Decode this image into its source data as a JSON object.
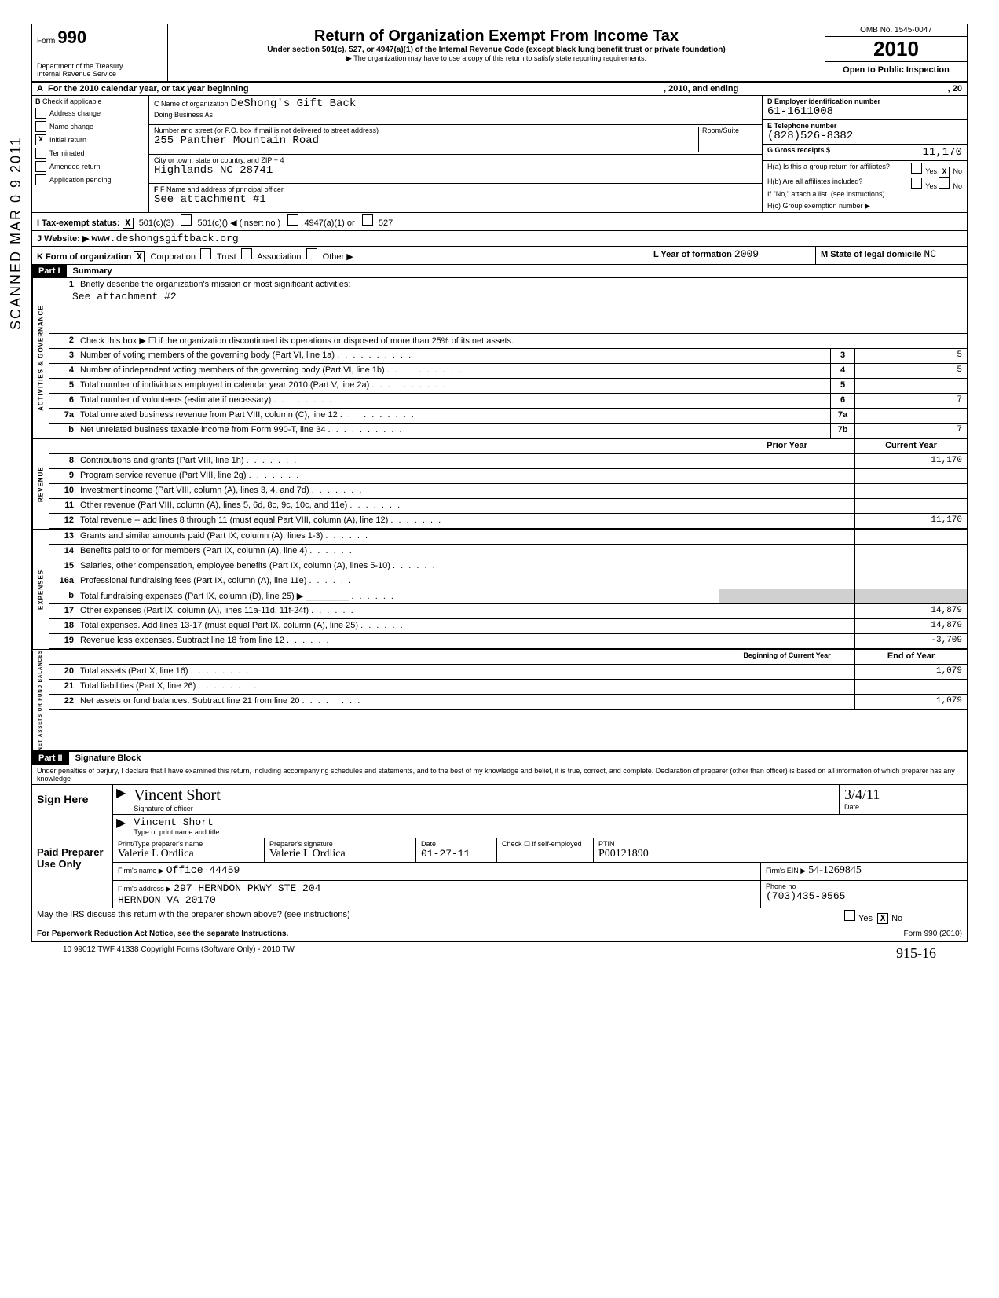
{
  "header": {
    "form_label": "Form",
    "form_number": "990",
    "dept1": "Department of the Treasury",
    "dept2": "Internal Revenue Service",
    "title": "Return of Organization Exempt From Income Tax",
    "subtitle": "Under section 501(c), 527, or 4947(a)(1) of the Internal Revenue Code (except black lung benefit trust or private foundation)",
    "note": "▶ The organization may have to use a copy of this return to satisfy state reporting requirements.",
    "omb": "OMB No. 1545-0047",
    "year": "2010",
    "open": "Open to Public Inspection"
  },
  "row_a": {
    "label": "A",
    "text": "For the 2010 calendar year, or tax year beginning",
    "mid": ", 2010, and ending",
    "end": ", 20"
  },
  "col_b": {
    "header": "B",
    "sub": "Check if applicable",
    "items": [
      "Address change",
      "Name change",
      "Initial return",
      "Terminated",
      "Amended return",
      "Application pending"
    ],
    "checked_index": 2
  },
  "col_c": {
    "name_label": "C Name of organization",
    "name_value": "DeShong's Gift Back",
    "dba_label": "Doing Business As",
    "dba_value": "",
    "addr_label": "Number and street (or P.O. box if mail is not delivered to street address)",
    "addr_value": "255 Panther Mountain Road",
    "room_label": "Room/Suite",
    "city_label": "City or town, state or country, and ZIP + 4",
    "city_value": "Highlands NC 28741",
    "officer_label": "F   Name and address of principal officer.",
    "officer_value": "See attachment #1"
  },
  "col_d": {
    "ein_label": "D Employer identification number",
    "ein_value": "61-1611008",
    "phone_label": "E Telephone number",
    "phone_value": "(828)526-8382",
    "gross_label": "G Gross receipts $",
    "gross_value": "11,170"
  },
  "h_section": {
    "ha": "H(a) Is this a group return for affiliates?",
    "hb": "H(b) Are all affiliates included?",
    "hb_note": "If \"No,\" attach a list. (see instructions)",
    "hc": "H(c) Group exemption number ▶",
    "yes": "Yes",
    "no": "No"
  },
  "status_row": {
    "i_label": "I  Tax-exempt status:",
    "c3": "501(c)(3)",
    "c": "501(c)(",
    "insert": ") ◀ (insert no )",
    "a1": "4947(a)(1) or",
    "s527": "527"
  },
  "website_row": {
    "label": "J Website: ▶",
    "value": "www.deshongsgiftback.org"
  },
  "k_row": {
    "label": "K Form of organization",
    "corp": "Corporation",
    "trust": "Trust",
    "assoc": "Association",
    "other": "Other ▶",
    "l_label": "L Year of formation",
    "l_value": "2009",
    "m_label": "M State of legal domicile",
    "m_value": "NC"
  },
  "part1": {
    "header": "Part I",
    "title": "Summary",
    "line1_num": "1",
    "line1_text": "Briefly describe the organization's mission or most significant activities:",
    "line1_value": "See attachment #2",
    "side_act": "ACTIVITIES & GOVERNANCE",
    "side_rev": "REVENUE",
    "side_exp": "EXPENSES",
    "side_net": "NET ASSETS OR FUND BALANCES",
    "lines_gov": [
      {
        "n": "2",
        "t": "Check this box ▶ ☐ if the organization discontinued its operations or disposed of more than 25% of its net assets."
      },
      {
        "n": "3",
        "t": "Number of voting members of the governing body (Part VI, line 1a)",
        "box": "3",
        "v": "5"
      },
      {
        "n": "4",
        "t": "Number of independent voting members of the governing body (Part VI, line 1b)",
        "box": "4",
        "v": "5"
      },
      {
        "n": "5",
        "t": "Total number of individuals employed in calendar year 2010 (Part V, line 2a)",
        "box": "5",
        "v": ""
      },
      {
        "n": "6",
        "t": "Total number of volunteers (estimate if necessary)",
        "box": "6",
        "v": "7"
      },
      {
        "n": "7a",
        "t": "Total unrelated business revenue from Part VIII, column (C), line 12",
        "box": "7a",
        "v": ""
      },
      {
        "n": "b",
        "t": "Net unrelated business taxable income from Form 990-T, line 34",
        "box": "7b",
        "v": "7"
      }
    ],
    "col_prior": "Prior Year",
    "col_current": "Current Year",
    "lines_rev": [
      {
        "n": "8",
        "t": "Contributions and grants (Part VIII, line 1h)",
        "p": "",
        "c": "11,170"
      },
      {
        "n": "9",
        "t": "Program service revenue (Part VIII, line 2g)",
        "p": "",
        "c": ""
      },
      {
        "n": "10",
        "t": "Investment income (Part VIII, column (A), lines 3, 4, and 7d)",
        "p": "",
        "c": ""
      },
      {
        "n": "11",
        "t": "Other revenue (Part VIII, column (A), lines 5, 6d, 8c, 9c, 10c, and 11e)",
        "p": "",
        "c": ""
      },
      {
        "n": "12",
        "t": "Total revenue -- add lines 8 through 11 (must equal Part VIII, column (A), line 12)",
        "p": "",
        "c": "11,170"
      }
    ],
    "lines_exp": [
      {
        "n": "13",
        "t": "Grants and similar amounts paid (Part IX, column (A), lines 1-3)",
        "p": "",
        "c": ""
      },
      {
        "n": "14",
        "t": "Benefits paid to or for members (Part IX, column (A), line 4)",
        "p": "",
        "c": ""
      },
      {
        "n": "15",
        "t": "Salaries, other compensation, employee benefits (Part IX, column (A), lines 5-10)",
        "p": "",
        "c": ""
      },
      {
        "n": "16a",
        "t": "Professional fundraising fees (Part IX, column (A), line 11e)",
        "p": "",
        "c": ""
      },
      {
        "n": "b",
        "t": "Total fundraising expenses (Part IX, column (D), line 25) ▶ _________",
        "p": "gray",
        "c": "gray"
      },
      {
        "n": "17",
        "t": "Other expenses (Part IX, column (A), lines 11a-11d, 11f-24f)",
        "p": "",
        "c": "14,879"
      },
      {
        "n": "18",
        "t": "Total expenses. Add lines 13-17 (must equal Part IX, column (A), line 25)",
        "p": "",
        "c": "14,879"
      },
      {
        "n": "19",
        "t": "Revenue less expenses. Subtract line 18 from line 12",
        "p": "",
        "c": "-3,709"
      }
    ],
    "col_begin": "Beginning of Current Year",
    "col_end": "End of Year",
    "lines_net": [
      {
        "n": "20",
        "t": "Total assets (Part X, line 16)",
        "p": "",
        "c": "1,079"
      },
      {
        "n": "21",
        "t": "Total liabilities (Part X, line 26)",
        "p": "",
        "c": ""
      },
      {
        "n": "22",
        "t": "Net assets or fund balances. Subtract line 21 from line 20",
        "p": "",
        "c": "1,079"
      }
    ]
  },
  "part2": {
    "header": "Part II",
    "title": "Signature Block",
    "perjury": "Under penalties of perjury, I declare that I have examined this return, including accompanying schedules and statements, and to the best of my knowledge and belief, it is true, correct, and complete. Declaration of preparer (other than officer) is based on all information of which preparer has any knowledge"
  },
  "sign": {
    "here": "Sign Here",
    "sig_value": "Vincent Short",
    "sig_label": "Signature of officer",
    "date_label": "Date",
    "date_value": "3/4/11",
    "name_value": "Vincent Short",
    "name_label": "Type or print name and title"
  },
  "preparer": {
    "title": "Paid Preparer Use Only",
    "name_label": "Print/Type preparer's name",
    "name_value": "Valerie L Ordlica",
    "sig_label": "Preparer's signature",
    "sig_value": "Valerie L Ordlica",
    "date_label": "Date",
    "date_value": "01-27-11",
    "check_label": "Check ☐ if self-employed",
    "ptin_label": "PTIN",
    "ptin_value": "P00121890",
    "firm_label": "Firm's name ▶",
    "firm_value": "Office 44459",
    "ein_label": "Firm's EIN ▶",
    "ein_value": "54-1269845",
    "addr_label": "Firm's address ▶",
    "addr_value": "297 HERNDON PKWY STE 204",
    "addr2_value": "HERNDON VA 20170",
    "phone_label": "Phone no",
    "phone_value": "(703)435-0565"
  },
  "discuss": {
    "text": "May the IRS discuss this return with the preparer shown above? (see instructions)",
    "yes": "Yes",
    "no": "No"
  },
  "footer": {
    "pra": "For Paperwork Reduction Act Notice, see the separate Instructions.",
    "form": "Form 990 (2010)",
    "bottom": "10  99012      TWF 41338      Copyright Forms (Software Only) - 2010 TW",
    "hand": "915-16"
  },
  "stamp": "SCANNED MAR 0 9 2011"
}
